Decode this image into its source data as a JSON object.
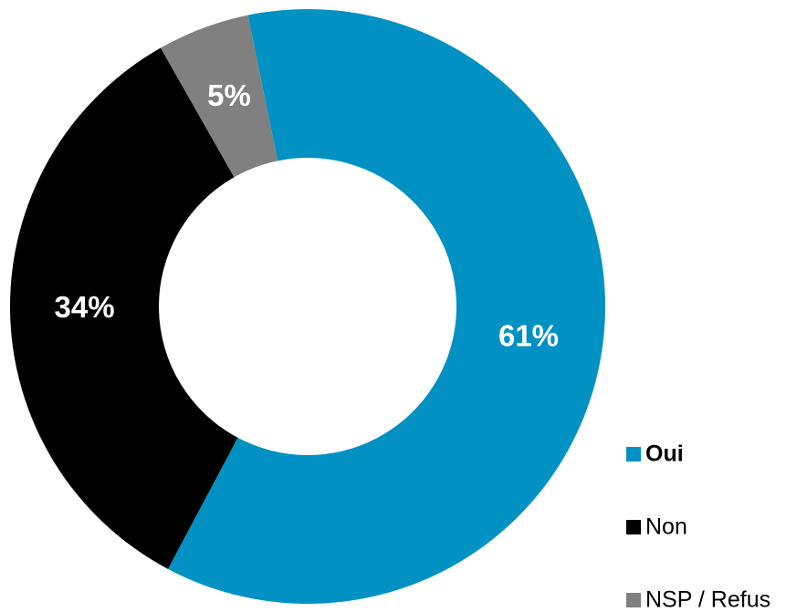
{
  "chart_data": {
    "type": "donut",
    "categories": [
      "Oui",
      "Non",
      "NSP / Refus"
    ],
    "values": [
      61,
      34,
      5
    ],
    "value_labels": [
      "61%",
      "34%",
      "5%"
    ],
    "colors": [
      "#0191c2",
      "#000000",
      "#808080"
    ],
    "legend": "right"
  }
}
